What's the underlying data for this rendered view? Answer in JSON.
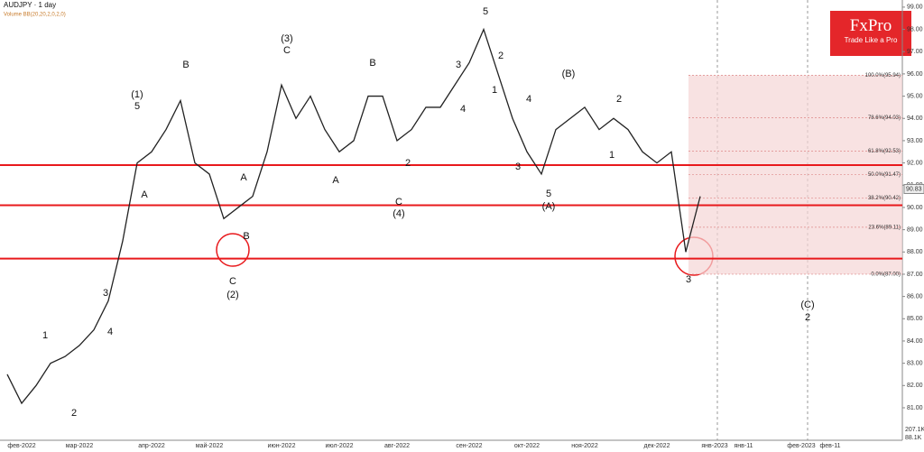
{
  "chart_data": {
    "type": "line",
    "title": "AUDJPY · 1 day",
    "subtitle": "Volume  BB(20,20,2,0,2,0)",
    "brand": "FxPro",
    "tagline": "Trade Like a Pro",
    "categories": [
      null,
      "фев-2022",
      null,
      null,
      null,
      "мар-2022",
      null,
      null,
      null,
      null,
      "апр-2022",
      null,
      null,
      null,
      "май-2022",
      null,
      null,
      null,
      null,
      "июн-2022",
      null,
      null,
      null,
      "июл-2022",
      null,
      null,
      null,
      "авг-2022",
      null,
      null,
      null,
      null,
      "сен-2022",
      null,
      null,
      null,
      "окт-2022",
      null,
      null,
      null,
      "ноя-2022",
      null,
      null,
      null,
      null,
      "дек-2022",
      null,
      null,
      null,
      "янв-2023",
      null,
      "янв-11",
      null,
      null,
      null,
      "фев-2023",
      null,
      "фев-11",
      null,
      null,
      null,
      null
    ],
    "series": [
      {
        "name": "AUDJPY",
        "color": "#222222",
        "values": [
          82.5,
          81.2,
          82.0,
          83.0,
          83.3,
          83.8,
          84.5,
          85.8,
          88.5,
          92.0,
          92.5,
          93.5,
          94.8,
          92.0,
          91.5,
          89.5,
          90.0,
          90.5,
          92.5,
          95.5,
          94.0,
          95.0,
          93.5,
          92.5,
          93.0,
          95.0,
          95.0,
          93.0,
          93.5,
          94.5,
          94.5,
          95.5,
          96.5,
          98.0,
          96.0,
          94.0,
          92.5,
          91.5,
          93.5,
          94.0,
          94.5,
          93.5,
          94.0,
          93.5,
          92.5,
          92.0,
          92.5,
          88.0,
          90.5,
          null,
          null,
          null,
          null,
          null,
          null,
          null,
          null,
          null,
          null,
          null,
          null,
          null
        ]
      }
    ],
    "ylim": [
      79.54,
      99.32
    ],
    "yticks": [
      {
        "value": 81,
        "label": "81.00"
      },
      {
        "value": 82,
        "label": "82.00"
      },
      {
        "value": 83,
        "label": "83.00"
      },
      {
        "value": 84,
        "label": "84.00"
      },
      {
        "value": 85,
        "label": "85.00"
      },
      {
        "value": 86,
        "label": "86.00"
      },
      {
        "value": 87,
        "label": "87.00"
      },
      {
        "value": 88,
        "label": "88.00"
      },
      {
        "value": 89,
        "label": "89.00"
      },
      {
        "value": 90,
        "label": "90.00"
      },
      {
        "value": 91,
        "label": "91.00"
      },
      {
        "value": 92,
        "label": "92.00"
      },
      {
        "value": 93,
        "label": "93.00"
      },
      {
        "value": 94,
        "label": "94.00"
      },
      {
        "value": 95,
        "label": "95.00"
      },
      {
        "value": 96,
        "label": "96.00"
      },
      {
        "value": 97,
        "label": "97.00"
      },
      {
        "value": 98,
        "label": "98.00"
      },
      {
        "value": 99,
        "label": "99.00"
      }
    ],
    "last_price": {
      "value": 90.83,
      "label": "90.83"
    },
    "levels": [
      91.9,
      90.1,
      87.7
    ],
    "level_color": "#e8191c",
    "fib_levels": [
      {
        "value": 95.94,
        "label": "100.0%(95.94)"
      },
      {
        "value": 94.03,
        "label": "78.6%(94.03)"
      },
      {
        "value": 92.53,
        "label": "61.8%(92.53)"
      },
      {
        "value": 91.47,
        "label": "50.0%(91.47)"
      },
      {
        "value": 90.42,
        "label": "38.2%(90.42)"
      },
      {
        "value": 89.11,
        "label": "23.6%(89.11)"
      },
      {
        "value": 87.0,
        "label": "0.0%(87.00)"
      }
    ],
    "volume_labels": [
      "207.1K",
      "88.1K"
    ],
    "annotations": [
      "(1)",
      "5",
      "B",
      "(3)",
      "C",
      "B",
      "5",
      "(B)",
      "2",
      "A",
      "C",
      "(2)",
      "C",
      "(4)",
      "5",
      "(A)",
      "3",
      "(C)",
      "2",
      "1",
      "3",
      "4",
      "2",
      "3",
      "1",
      "4",
      "2",
      "1",
      "3",
      "4",
      "A",
      "B",
      "A",
      "2"
    ]
  }
}
